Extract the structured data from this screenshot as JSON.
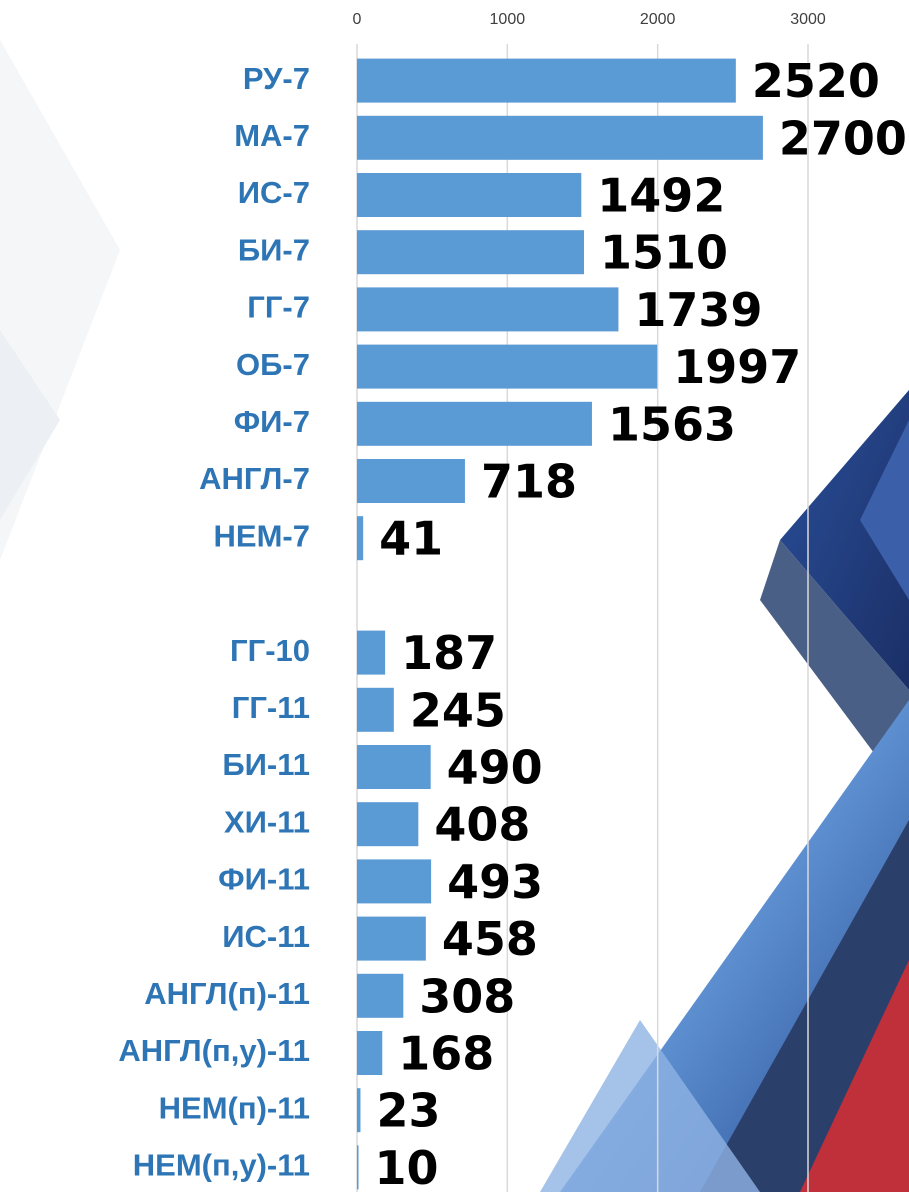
{
  "chart_data": {
    "type": "bar",
    "orientation": "horizontal",
    "categories": [
      "РУ-7",
      "МА-7",
      "ИС-7",
      "БИ-7",
      "ГГ-7",
      "ОБ-7",
      "ФИ-7",
      "АНГЛ-7",
      "НЕМ-7",
      null,
      "ГГ-10",
      "ГГ-11",
      "БИ-11",
      "ХИ-11",
      "ФИ-11",
      "ИС-11",
      "АНГЛ(п)-11",
      "АНГЛ(п,у)-11",
      "НЕМ(п)-11",
      "НЕМ(п,у)-11"
    ],
    "values": [
      2520,
      2700,
      1492,
      1510,
      1739,
      1997,
      1563,
      718,
      41,
      null,
      187,
      245,
      490,
      408,
      493,
      458,
      308,
      168,
      23,
      10
    ],
    "color": "#5b9bd5",
    "xlim": [
      0,
      3000
    ],
    "xticks": [
      0,
      1000,
      2000,
      3000
    ],
    "grid": true
  }
}
